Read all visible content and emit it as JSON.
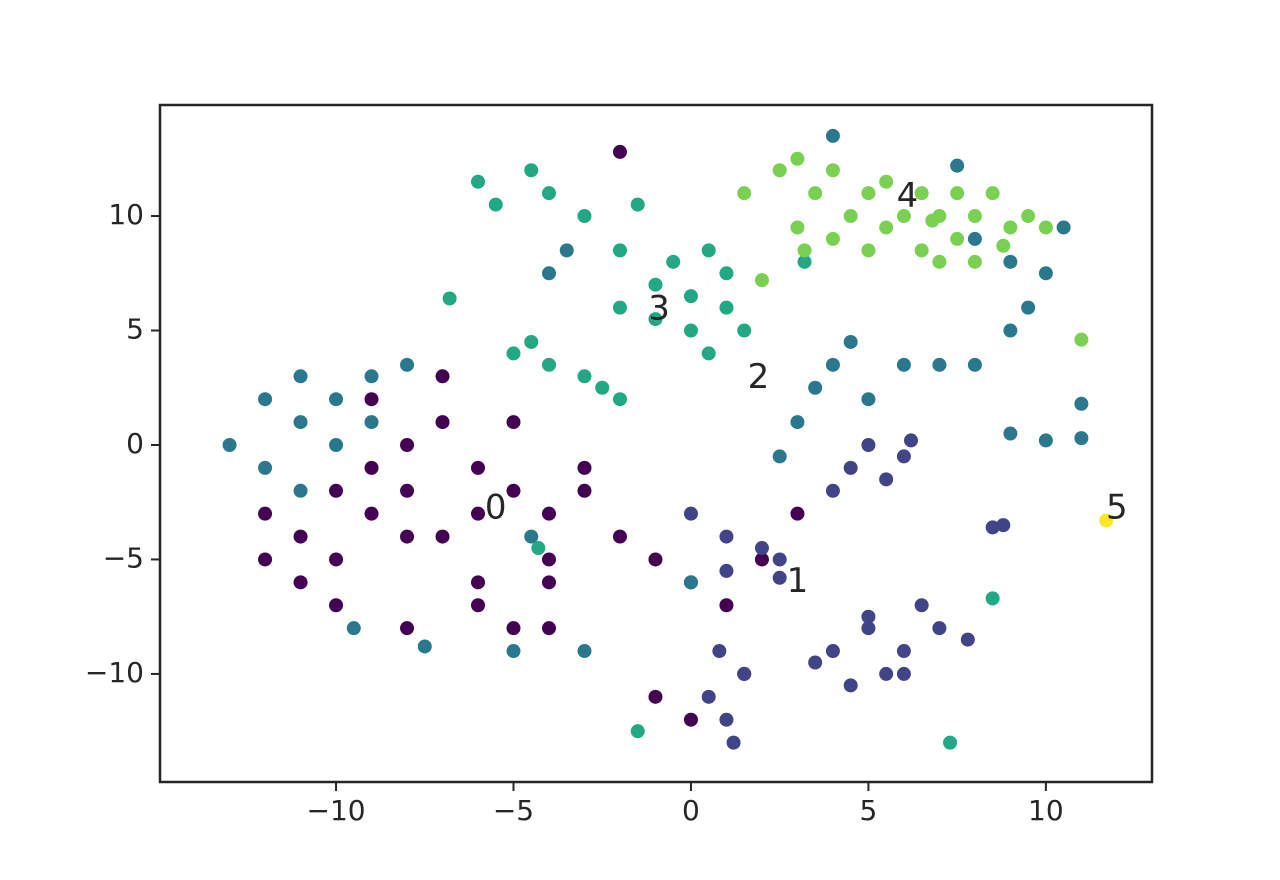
{
  "chart_data": {
    "type": "scatter",
    "xlim": [
      -14.96,
      12.99
    ],
    "ylim": [
      -14.72,
      14.85
    ],
    "xticks": [
      {
        "value": -10,
        "label": "−10"
      },
      {
        "value": -5,
        "label": "−5"
      },
      0,
      5,
      10
    ],
    "yticks": [
      {
        "value": -10,
        "label": "−10"
      },
      {
        "value": -5,
        "label": "−5"
      },
      0,
      5,
      10
    ],
    "series": [
      {
        "color": "#440154",
        "x": [
          -12,
          -11,
          -10,
          -9,
          -8,
          -7,
          -6,
          -5,
          -4,
          -3,
          -11,
          -10,
          -9,
          -8,
          -7,
          -6,
          -5,
          -4,
          -12,
          -10,
          -8,
          -6,
          -4,
          -9,
          -7,
          -5,
          -3,
          -8,
          -6,
          -4,
          -2,
          -1,
          0,
          1,
          2,
          3,
          -1,
          0,
          1.5,
          -2
        ],
        "values": [
          -3,
          -4,
          -5,
          -3,
          -2,
          -4,
          -1,
          -2,
          -3,
          -2,
          -6,
          -7,
          -1,
          0,
          1,
          -6,
          -8,
          -6,
          -5,
          -2,
          -4,
          -3,
          -5,
          2,
          3,
          1,
          -1,
          -8,
          -7,
          -8,
          -4,
          -5,
          -6,
          -7,
          -5,
          -3,
          -11,
          -12,
          -10,
          12.8
        ]
      },
      {
        "color": "#414487",
        "x": [
          0,
          1,
          2,
          2.5,
          1,
          0.5,
          1,
          1.5,
          0.8,
          1.2,
          4,
          5,
          6,
          7,
          5.5,
          4.5,
          6.5,
          3.5,
          5,
          6,
          4.5,
          5,
          5.5,
          6,
          4,
          6.2,
          8.5,
          8.8,
          7.8,
          2.5
        ],
        "values": [
          -3,
          -4,
          -4.5,
          -5,
          -5.5,
          -11,
          -12,
          -10,
          -9,
          -13,
          -9,
          -8,
          -9,
          -8,
          -10,
          -10.5,
          -7,
          -9.5,
          -7.5,
          -10,
          -1,
          0,
          -1.5,
          -0.5,
          -2,
          0.2,
          -3.6,
          -3.5,
          -8.5,
          -5.8
        ]
      },
      {
        "color": "#2a788e",
        "x": [
          -12,
          -11,
          -11,
          -10,
          -10,
          -9,
          -9,
          -12,
          -11,
          -8,
          -13,
          -9.5,
          -7.5,
          -5,
          -3,
          -4.5,
          0,
          2.5,
          3,
          3.5,
          4,
          4.5,
          5,
          6,
          7,
          8,
          9,
          9.5,
          10,
          9,
          8,
          10.5,
          10,
          11,
          9,
          11,
          4,
          7.5,
          -4,
          -3.5
        ],
        "values": [
          2,
          1,
          3,
          0,
          2,
          3,
          1,
          -1,
          -2,
          3.5,
          0,
          -8,
          -8.8,
          -9,
          -9,
          -4,
          -6,
          -0.5,
          1,
          2.5,
          3.5,
          4.5,
          2,
          3.5,
          3.5,
          3.5,
          5,
          6,
          7.5,
          8,
          9,
          9.5,
          0.2,
          0.3,
          0.5,
          1.8,
          13.5,
          12.2,
          7.5,
          8.5
        ]
      },
      {
        "color": "#22a884",
        "x": [
          -1,
          0,
          1,
          1.5,
          0,
          -1,
          -2,
          0.5,
          -0.5,
          1,
          -2,
          0.5,
          -5,
          -4,
          -3,
          -2.5,
          -2,
          -4.5,
          -6,
          -5.5,
          -4.5,
          -4,
          -3,
          -1.5,
          -6.8,
          7.3,
          8.5,
          3.2,
          -1.5,
          -4.3
        ],
        "values": [
          7,
          6.5,
          6,
          5,
          5,
          5.5,
          6,
          4,
          8,
          7.5,
          8.5,
          8.5,
          4,
          3.5,
          3,
          2.5,
          2,
          4.5,
          11.5,
          10.5,
          12,
          11,
          10,
          10.5,
          6.4,
          -13,
          -6.7,
          8,
          -12.5,
          -4.5
        ]
      },
      {
        "color": "#7ad151",
        "x": [
          1.5,
          2.5,
          3,
          3.5,
          4,
          4.5,
          5,
          5.5,
          6,
          6.5,
          7,
          7.5,
          8,
          8.5,
          9,
          7,
          6.5,
          5,
          3,
          8,
          9.5,
          10,
          4,
          2,
          3.2,
          11,
          5.5,
          7.5,
          6.8,
          8.8
        ],
        "values": [
          11,
          12,
          12.5,
          11,
          12,
          10,
          11,
          9.5,
          10,
          11,
          10,
          9,
          10,
          11,
          9.5,
          8,
          8.5,
          8.5,
          9.5,
          8,
          10,
          9.5,
          9,
          7.2,
          8.5,
          4.6,
          11.5,
          11,
          9.8,
          8.7
        ]
      },
      {
        "color": "#fde725",
        "x": [
          11.7
        ],
        "values": [
          -3.3
        ]
      }
    ],
    "annotations": [
      {
        "text": "0",
        "x": -5.5,
        "y": -2.8
      },
      {
        "text": "1",
        "x": 3,
        "y": -6
      },
      {
        "text": "2",
        "x": 1.9,
        "y": 2.9
      },
      {
        "text": "3",
        "x": -0.9,
        "y": 5.9
      },
      {
        "text": "4",
        "x": 6.1,
        "y": 10.8
      },
      {
        "text": "5",
        "x": 12,
        "y": -2.8
      }
    ]
  }
}
